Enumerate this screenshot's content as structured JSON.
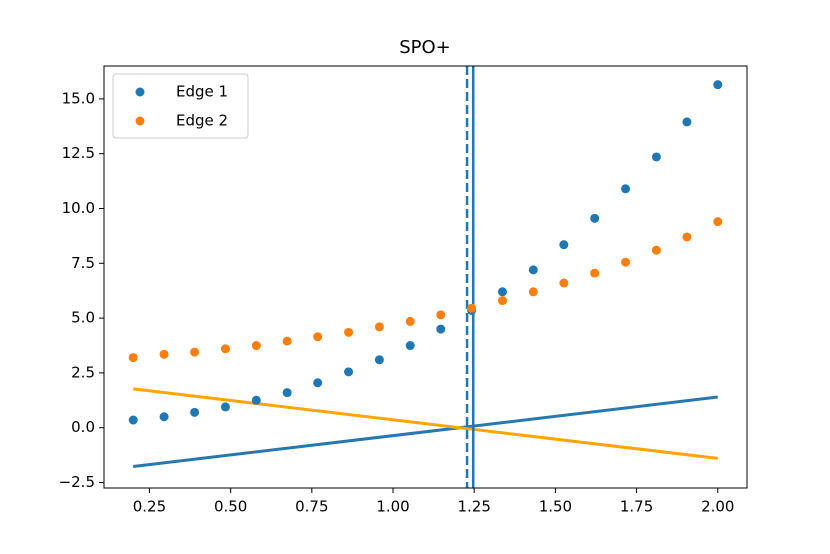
{
  "chart_data": {
    "type": "scatter",
    "title": "SPO+",
    "x": [
      0.2,
      0.295,
      0.389,
      0.484,
      0.579,
      0.674,
      0.768,
      0.863,
      0.958,
      1.053,
      1.147,
      1.242,
      1.337,
      1.432,
      1.526,
      1.621,
      1.716,
      1.811,
      1.905,
      2.0
    ],
    "series": [
      {
        "name": "Edge 1",
        "color": "#1f77b4",
        "values": [
          0.35,
          0.5,
          0.7,
          0.95,
          1.25,
          1.6,
          2.05,
          2.55,
          3.1,
          3.75,
          4.5,
          5.35,
          6.2,
          7.2,
          8.35,
          9.55,
          10.9,
          12.35,
          13.95,
          15.65
        ]
      },
      {
        "name": "Edge 2",
        "color": "#ff7f0e",
        "values": [
          3.2,
          3.35,
          3.45,
          3.6,
          3.75,
          3.95,
          4.15,
          4.35,
          4.6,
          4.85,
          5.15,
          5.45,
          5.8,
          6.2,
          6.6,
          7.05,
          7.55,
          8.1,
          8.7,
          9.4
        ]
      }
    ],
    "lines": [
      {
        "color": "#2878b0",
        "x": [
          0.2,
          2.0
        ],
        "values": [
          -1.77,
          1.4
        ]
      },
      {
        "color": "#ffa500",
        "x": [
          0.2,
          2.0
        ],
        "values": [
          1.77,
          -1.4
        ]
      }
    ],
    "vlines": [
      {
        "x": 1.228,
        "color": "#1f77b4",
        "style": "dashed"
      },
      {
        "x": 1.247,
        "color": "#1f77b4",
        "style": "solid"
      }
    ],
    "xlim": [
      0.11,
      2.09
    ],
    "ylim": [
      -2.75,
      16.5
    ],
    "xticks": [
      0.25,
      {
        "value": 0.5,
        "label": "0.50"
      },
      0.75,
      {
        "value": 1,
        "label": "1.00"
      },
      1.25,
      {
        "value": 1.5,
        "label": "1.50"
      },
      1.75,
      {
        "value": 2,
        "label": "2.00"
      }
    ],
    "yticks": [
      {
        "value": -2.5,
        "label": "−2.5"
      },
      {
        "value": 0,
        "label": "0.0"
      },
      2.5,
      {
        "value": 5,
        "label": "5.0"
      },
      7.5,
      {
        "value": 10,
        "label": "10.0"
      },
      12.5,
      {
        "value": 15,
        "label": "15.0"
      }
    ],
    "legend": "upper left",
    "grid": false
  }
}
